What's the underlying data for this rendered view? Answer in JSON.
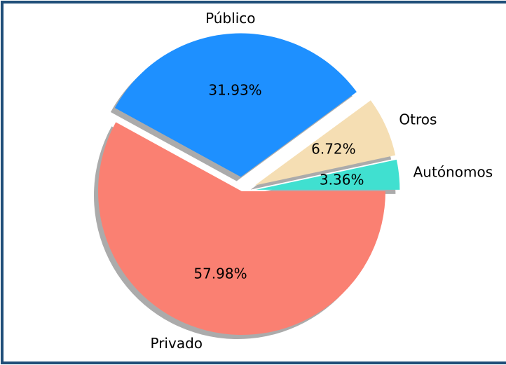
{
  "chart_data": {
    "type": "pie",
    "categories": [
      "Autónomos",
      "Otros",
      "Público",
      "Privado"
    ],
    "values": [
      3.36,
      6.72,
      31.93,
      57.98
    ],
    "value_labels": [
      "3.36%",
      "6.72%",
      "31.93%",
      "57.98%"
    ],
    "colors": [
      "#40e0d0",
      "#f5deb3",
      "#1e90ff",
      "#fa8072"
    ],
    "shadow": true
  }
}
